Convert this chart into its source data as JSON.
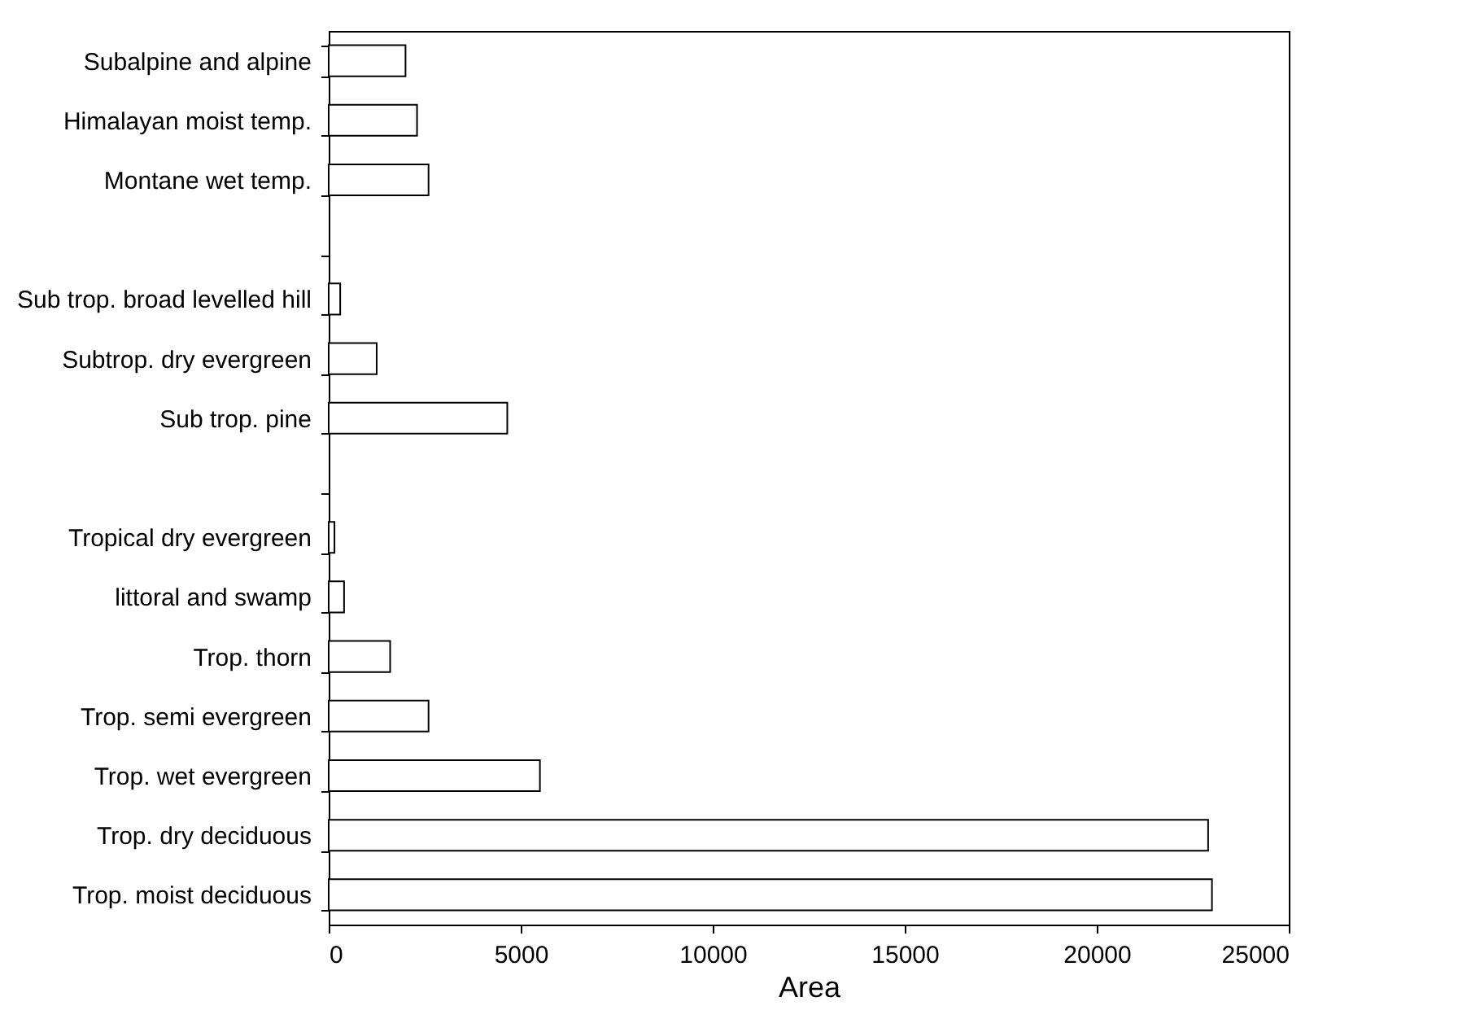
{
  "chart_data": {
    "type": "bar",
    "orientation": "horizontal",
    "categories": [
      "Subalpine and alpine",
      "Himalayan moist temp.",
      "Montane wet temp.",
      null,
      "Sub trop. broad levelled hill",
      "Subtrop. dry evergreen",
      "Sub trop. pine",
      null,
      "Tropical dry evergreen",
      "littoral and swamp",
      "Trop. thorn",
      "Trop. semi evergreen",
      "Trop. wet evergreen",
      "Trop. dry deciduous",
      "Trop. moist deciduous"
    ],
    "values": [
      2000,
      2300,
      2600,
      null,
      300,
      1250,
      4650,
      null,
      150,
      400,
      1600,
      2600,
      5500,
      22900,
      23000
    ],
    "color": "#ffffff",
    "xlabel": "Area",
    "xlim": [
      0,
      25000
    ],
    "xticks": [
      0,
      5000,
      10000,
      15000,
      20000,
      25000
    ],
    "grid": false
  }
}
